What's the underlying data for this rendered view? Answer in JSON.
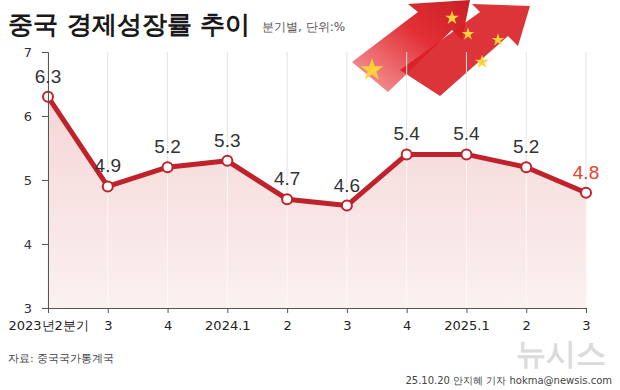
{
  "chart_data": {
    "type": "line",
    "title": "중국 경제성장률 추이",
    "subtitle": "분기별, 단위:%",
    "categories": [
      "2023년2분기",
      "3",
      "4",
      "2024.1",
      "2",
      "3",
      "4",
      "2025.1",
      "2",
      "3"
    ],
    "values": [
      6.3,
      4.9,
      5.2,
      5.3,
      4.7,
      4.6,
      5.4,
      5.4,
      5.2,
      4.8
    ],
    "color": "#c0222b",
    "marker": "circle",
    "data_labels": true,
    "grid": true,
    "ylim": [
      3,
      7
    ],
    "yticks": [
      3,
      4,
      5,
      6,
      7
    ],
    "annotations": [
      "자료: 중국국가통계국",
      "25.10.20 안지혜 기자 hokma@newsis.com",
      "뉴시스"
    ]
  }
}
